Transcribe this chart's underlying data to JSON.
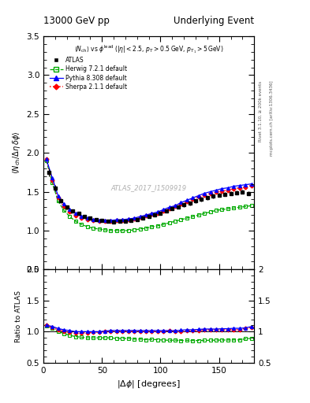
{
  "title_left": "13000 GeV pp",
  "title_right": "Underlying Event",
  "subtitle": "$\\langle N_{\\rm ch}\\rangle$ vs $\\phi^{\\rm lead}$ ($|\\eta|<2.5,\\,p_T>0.5\\,{\\rm GeV},\\,p_{T_1}>5\\,{\\rm GeV}$)",
  "xlabel": "$|\\Delta\\phi|$ [degrees]",
  "ylabel_main": "$\\langle N_{\\rm ch}/\\Delta\\eta\\,\\delta\\phi\\rangle$",
  "ylabel_ratio": "Ratio to ATLAS",
  "watermark": "ATLAS_2017_I1509919",
  "rivet_label": "Rivet 3.1.10, ≥ 200k events",
  "mcplots_label": "mcplots.cern.ch [arXiv:1306.3436]",
  "xlim": [
    0,
    180
  ],
  "ylim_main": [
    0.5,
    3.5
  ],
  "ylim_ratio": [
    0.5,
    2.0
  ],
  "yticks_main": [
    0.5,
    1.0,
    1.5,
    2.0,
    2.5,
    3.0,
    3.5
  ],
  "yticks_ratio": [
    0.5,
    1.0,
    1.5,
    2.0
  ],
  "xticks": [
    0,
    50,
    100,
    150
  ],
  "atlas_color": "#000000",
  "herwig_color": "#00aa00",
  "pythia_color": "#0000ff",
  "sherpa_color": "#ff0000",
  "atlas_x": [
    5.0,
    10.0,
    15.0,
    20.0,
    25.0,
    30.0,
    35.0,
    40.0,
    45.0,
    50.0,
    55.0,
    60.0,
    65.0,
    70.0,
    75.0,
    80.0,
    85.0,
    90.0,
    95.0,
    100.0,
    105.0,
    110.0,
    115.0,
    120.0,
    125.0,
    130.0,
    135.0,
    140.0,
    145.0,
    150.0,
    155.0,
    160.0,
    165.0,
    170.0,
    175.0
  ],
  "atlas_y": [
    1.75,
    1.55,
    1.38,
    1.3,
    1.25,
    1.22,
    1.18,
    1.16,
    1.14,
    1.13,
    1.12,
    1.11,
    1.12,
    1.12,
    1.13,
    1.14,
    1.16,
    1.18,
    1.2,
    1.22,
    1.25,
    1.28,
    1.3,
    1.33,
    1.35,
    1.38,
    1.4,
    1.42,
    1.44,
    1.46,
    1.47,
    1.48,
    1.49,
    1.5,
    1.48
  ],
  "atlas_yerr": [
    0.05,
    0.04,
    0.03,
    0.025,
    0.022,
    0.02,
    0.018,
    0.017,
    0.016,
    0.015,
    0.015,
    0.015,
    0.015,
    0.015,
    0.015,
    0.015,
    0.016,
    0.017,
    0.018,
    0.018,
    0.019,
    0.02,
    0.021,
    0.022,
    0.022,
    0.023,
    0.023,
    0.024,
    0.024,
    0.025,
    0.025,
    0.025,
    0.025,
    0.025,
    0.025
  ],
  "herwig_x": [
    2.5,
    7.5,
    12.5,
    17.5,
    22.5,
    27.5,
    32.5,
    37.5,
    42.5,
    47.5,
    52.5,
    57.5,
    62.5,
    67.5,
    72.5,
    77.5,
    82.5,
    87.5,
    92.5,
    97.5,
    102.5,
    107.5,
    112.5,
    117.5,
    122.5,
    127.5,
    132.5,
    137.5,
    142.5,
    147.5,
    152.5,
    157.5,
    162.5,
    167.5,
    172.5,
    177.5
  ],
  "herwig_y": [
    1.9,
    1.62,
    1.38,
    1.26,
    1.18,
    1.12,
    1.08,
    1.05,
    1.03,
    1.02,
    1.01,
    1.0,
    1.0,
    1.0,
    1.0,
    1.01,
    1.02,
    1.03,
    1.05,
    1.06,
    1.08,
    1.1,
    1.12,
    1.14,
    1.16,
    1.18,
    1.2,
    1.22,
    1.24,
    1.26,
    1.27,
    1.28,
    1.29,
    1.3,
    1.31,
    1.32
  ],
  "pythia_x": [
    2.5,
    7.5,
    12.5,
    17.5,
    22.5,
    27.5,
    32.5,
    37.5,
    42.5,
    47.5,
    52.5,
    57.5,
    62.5,
    67.5,
    72.5,
    77.5,
    82.5,
    87.5,
    92.5,
    97.5,
    102.5,
    107.5,
    112.5,
    117.5,
    122.5,
    127.5,
    132.5,
    137.5,
    142.5,
    147.5,
    152.5,
    157.5,
    162.5,
    167.5,
    172.5,
    177.5
  ],
  "pythia_y": [
    1.92,
    1.68,
    1.45,
    1.34,
    1.27,
    1.22,
    1.18,
    1.16,
    1.14,
    1.13,
    1.13,
    1.13,
    1.14,
    1.14,
    1.15,
    1.16,
    1.18,
    1.2,
    1.22,
    1.24,
    1.27,
    1.3,
    1.32,
    1.36,
    1.39,
    1.42,
    1.45,
    1.48,
    1.5,
    1.52,
    1.54,
    1.55,
    1.57,
    1.58,
    1.59,
    1.6
  ],
  "sherpa_x": [
    2.5,
    7.5,
    12.5,
    17.5,
    22.5,
    27.5,
    32.5,
    37.5,
    42.5,
    47.5,
    52.5,
    57.5,
    62.5,
    67.5,
    72.5,
    77.5,
    82.5,
    87.5,
    92.5,
    97.5,
    102.5,
    107.5,
    112.5,
    117.5,
    122.5,
    127.5,
    132.5,
    137.5,
    142.5,
    147.5,
    152.5,
    157.5,
    162.5,
    167.5,
    172.5,
    177.5
  ],
  "sherpa_y": [
    1.92,
    1.65,
    1.42,
    1.31,
    1.24,
    1.19,
    1.16,
    1.14,
    1.13,
    1.12,
    1.12,
    1.12,
    1.13,
    1.13,
    1.14,
    1.15,
    1.17,
    1.19,
    1.21,
    1.22,
    1.25,
    1.28,
    1.31,
    1.34,
    1.37,
    1.4,
    1.43,
    1.46,
    1.48,
    1.5,
    1.51,
    1.52,
    1.54,
    1.55,
    1.56,
    1.58
  ],
  "herwig_ratio": [
    1.09,
    1.05,
    1.0,
    0.97,
    0.94,
    0.92,
    0.91,
    0.9,
    0.9,
    0.9,
    0.9,
    0.9,
    0.89,
    0.89,
    0.89,
    0.88,
    0.88,
    0.87,
    0.875,
    0.87,
    0.864,
    0.86,
    0.862,
    0.857,
    0.859,
    0.855,
    0.857,
    0.859,
    0.861,
    0.863,
    0.864,
    0.865,
    0.866,
    0.867,
    0.885,
    0.892
  ],
  "pythia_ratio": [
    1.1,
    1.085,
    1.05,
    1.03,
    1.016,
    1.0,
    1.0,
    1.0,
    1.0,
    1.0,
    1.009,
    1.018,
    1.018,
    1.018,
    1.018,
    1.018,
    1.017,
    1.017,
    1.017,
    1.017,
    1.016,
    1.016,
    1.015,
    1.023,
    1.03,
    1.029,
    1.036,
    1.042,
    1.042,
    1.041,
    1.047,
    1.047,
    1.054,
    1.053,
    1.06,
    1.081
  ],
  "sherpa_ratio": [
    1.1,
    1.065,
    1.03,
    1.01,
    0.992,
    0.975,
    0.983,
    0.983,
    0.991,
    0.992,
    1.0,
    1.009,
    1.009,
    1.009,
    1.009,
    1.009,
    1.009,
    1.009,
    1.008,
    1.0,
    1.0,
    1.016,
    1.008,
    1.008,
    1.015,
    1.014,
    1.021,
    1.028,
    1.028,
    1.027,
    1.027,
    1.027,
    1.034,
    1.033,
    1.054,
    1.067
  ],
  "bg_color": "#ffffff"
}
